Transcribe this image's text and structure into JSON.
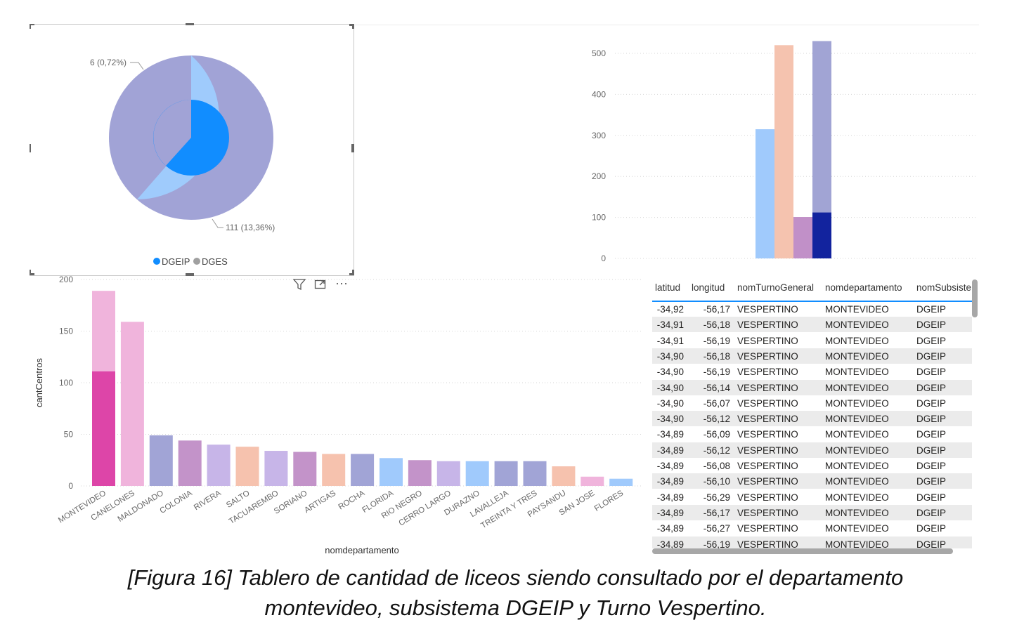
{
  "pie": {
    "legend": [
      {
        "label": "DGEIP",
        "color": "#118dff"
      },
      {
        "label": "DGES",
        "color": "#a0a0a0"
      }
    ],
    "label_small": "6 (0,72%)",
    "label_large": "111 (13,36%)",
    "colors": {
      "outer_large": "#9fcbfc",
      "outer_small": "#a1a3d6",
      "inner": "#118dff"
    }
  },
  "visual_toolbar": {
    "filter_icon": "funnel-icon",
    "focus_icon": "focus-mode-icon",
    "more_icon": "more-options-icon",
    "more_label": "⋯"
  },
  "chart_data": [
    {
      "type": "bar",
      "yticks": [
        "0",
        "100",
        "200",
        "300",
        "400",
        "500"
      ],
      "ylim": [
        0,
        550
      ],
      "grid": true,
      "bars": [
        {
          "value": 315,
          "color": "#a0cafc"
        },
        {
          "value": 520,
          "color": "#f5c3af"
        },
        {
          "value": 101,
          "color": "#c190c8"
        },
        {
          "value": 530,
          "highlight": 112,
          "color": "#a1a4d4",
          "highlight_color": "#12239e"
        }
      ]
    },
    {
      "type": "bar",
      "xlabel": "nomdepartamento",
      "ylabel": "cantCentros",
      "yticks": [
        "0",
        "50",
        "100",
        "150",
        "200"
      ],
      "ylim": [
        0,
        200
      ],
      "grid": true,
      "categories": [
        "MONTEVIDEO",
        "CANELONES",
        "MALDONADO",
        "COLONIA",
        "RIVERA",
        "SALTO",
        "TACUAREMBO",
        "SORIANO",
        "ARTIGAS",
        "ROCHA",
        "FLORIDA",
        "RIO NEGRO",
        "CERRO LARGO",
        "DURAZNO",
        "LAVALLEJA",
        "TREINTA Y TRES",
        "PAYSANDU",
        "SAN JOSE",
        "FLORES"
      ],
      "values": [
        189,
        159,
        49,
        44,
        40,
        38,
        34,
        33,
        31,
        31,
        27,
        25,
        24,
        24,
        24,
        24,
        19,
        9,
        7
      ],
      "highlight": [
        111,
        null,
        null,
        null,
        null,
        null,
        null,
        null,
        null,
        null,
        null,
        null,
        null,
        null,
        null,
        null,
        null,
        null,
        null
      ],
      "colors": [
        "#f0b4dc",
        "#f0b4dc",
        "#a1a4d6",
        "#c393c9",
        "#c7b5e8",
        "#f6c2ae",
        "#c7b5e8",
        "#c393c9",
        "#f6c2ae",
        "#a1a4d6",
        "#a0cafc",
        "#c393c9",
        "#c7b5e8",
        "#a0cafc",
        "#a1a4d6",
        "#a1a4d6",
        "#f6c2ae",
        "#f0b4dc",
        "#a0cafc"
      ],
      "highlight_color": "#dd45a8"
    }
  ],
  "table": {
    "headers": [
      "latitud",
      "longitud",
      "nomTurnoGeneral",
      "nomdepartamento",
      "nomSubsiste"
    ],
    "rows": [
      [
        "-34,92",
        "-56,17",
        "VESPERTINO",
        "MONTEVIDEO",
        "DGEIP"
      ],
      [
        "-34,91",
        "-56,18",
        "VESPERTINO",
        "MONTEVIDEO",
        "DGEIP"
      ],
      [
        "-34,91",
        "-56,19",
        "VESPERTINO",
        "MONTEVIDEO",
        "DGEIP"
      ],
      [
        "-34,90",
        "-56,18",
        "VESPERTINO",
        "MONTEVIDEO",
        "DGEIP"
      ],
      [
        "-34,90",
        "-56,19",
        "VESPERTINO",
        "MONTEVIDEO",
        "DGEIP"
      ],
      [
        "-34,90",
        "-56,14",
        "VESPERTINO",
        "MONTEVIDEO",
        "DGEIP"
      ],
      [
        "-34,90",
        "-56,07",
        "VESPERTINO",
        "MONTEVIDEO",
        "DGEIP"
      ],
      [
        "-34,90",
        "-56,12",
        "VESPERTINO",
        "MONTEVIDEO",
        "DGEIP"
      ],
      [
        "-34,89",
        "-56,09",
        "VESPERTINO",
        "MONTEVIDEO",
        "DGEIP"
      ],
      [
        "-34,89",
        "-56,12",
        "VESPERTINO",
        "MONTEVIDEO",
        "DGEIP"
      ],
      [
        "-34,89",
        "-56,08",
        "VESPERTINO",
        "MONTEVIDEO",
        "DGEIP"
      ],
      [
        "-34,89",
        "-56,10",
        "VESPERTINO",
        "MONTEVIDEO",
        "DGEIP"
      ],
      [
        "-34,89",
        "-56,29",
        "VESPERTINO",
        "MONTEVIDEO",
        "DGEIP"
      ],
      [
        "-34,89",
        "-56,17",
        "VESPERTINO",
        "MONTEVIDEO",
        "DGEIP"
      ],
      [
        "-34,89",
        "-56,27",
        "VESPERTINO",
        "MONTEVIDEO",
        "DGEIP"
      ],
      [
        "-34,89",
        "-56,19",
        "VESPERTINO",
        "MONTEVIDEO",
        "DGEIP"
      ]
    ]
  },
  "caption": {
    "line1": "[Figura 16] Tablero de cantidad de liceos siendo consultado por el departamento",
    "line2": "montevideo, subsistema DGEIP y Turno Vespertino."
  }
}
